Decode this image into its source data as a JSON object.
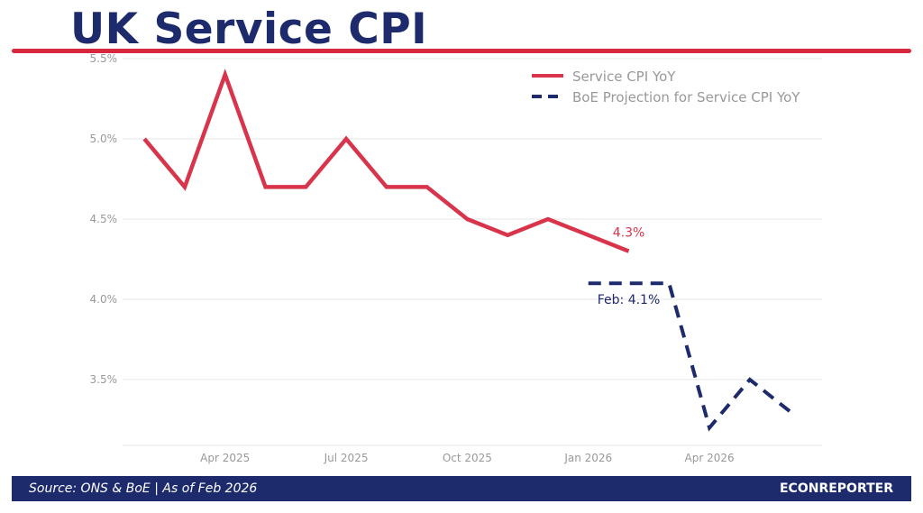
{
  "header": {
    "title": "UK Service CPI"
  },
  "footer": {
    "source": "Source: ONS & BoE  |  As of Feb 2026",
    "brand": "ECONREPORTER"
  },
  "colors": {
    "title": "#1d2a6b",
    "accent_red": "#d72840",
    "series_red": "#d8344c",
    "projection_navy": "#1d2a6b",
    "grid": "#eeeeee",
    "tick_text": "#999999",
    "footer_bg": "#1d2a6b"
  },
  "chart_data": {
    "type": "line",
    "title": "UK Service CPI",
    "xlabel": "",
    "ylabel": "",
    "ylim": [
      3.09,
      5.5
    ],
    "grid": true,
    "legend_position": "top-right",
    "y_ticks": [
      3.5,
      4.0,
      4.5,
      5.0,
      5.5
    ],
    "y_tick_labels": [
      "3.5%",
      "4.0%",
      "4.5%",
      "5.0%",
      "5.5%"
    ],
    "x_ticks": [
      "2025-04",
      "2025-07",
      "2025-10",
      "2026-01",
      "2026-04"
    ],
    "x_tick_labels": [
      "Apr 2025",
      "Jul 2025",
      "Oct 2025",
      "Jan 2026",
      "Apr 2026"
    ],
    "x_range": [
      "2025-01-15",
      "2026-06-25"
    ],
    "series": [
      {
        "name": "Service CPI YoY",
        "style": "solid",
        "x": [
          "2025-02",
          "2025-03",
          "2025-04",
          "2025-05",
          "2025-06",
          "2025-07",
          "2025-08",
          "2025-09",
          "2025-10",
          "2025-11",
          "2025-12",
          "2026-01",
          "2026-02"
        ],
        "values": [
          5.0,
          4.7,
          5.4,
          4.7,
          4.7,
          5.0,
          4.7,
          4.7,
          4.5,
          4.4,
          4.5,
          4.4,
          4.3
        ]
      },
      {
        "name": "BoE Projection for Service CPI YoY",
        "style": "dashed",
        "x": [
          "2026-01",
          "2026-02",
          "2026-03",
          "2026-04",
          "2026-05",
          "2026-06"
        ],
        "values": [
          4.1,
          4.1,
          4.1,
          3.2,
          3.5,
          3.3
        ]
      }
    ],
    "annotations": [
      {
        "text": "4.3%",
        "series": "Service CPI YoY",
        "x": "2026-02",
        "value": 4.3
      },
      {
        "text": "Feb: 4.1%",
        "series": "BoE Projection for Service CPI YoY",
        "x": "2026-02",
        "value": 4.1
      }
    ]
  }
}
